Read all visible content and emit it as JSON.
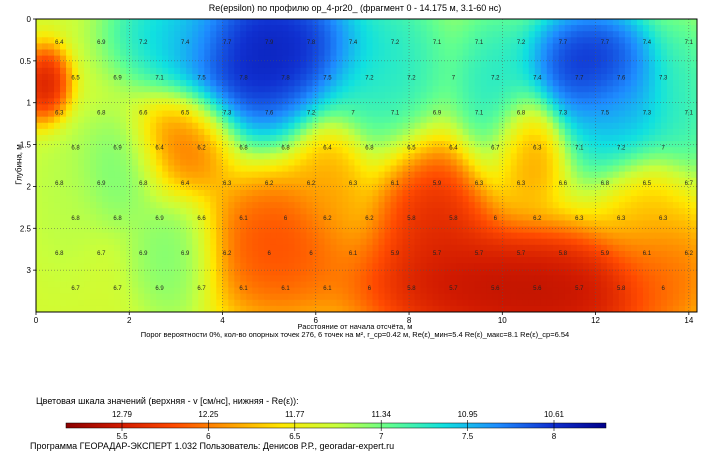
{
  "chart_data": {
    "type": "heatmap",
    "title": "Re(epsilon) по профилю op_4-pr20_ (фрагмент 0 - 14.175 м, 3.1-60 нс)",
    "xlabel": "Расстояние от начала отсчёта, м",
    "ylabel": "Глубина, м",
    "xlim": [
      0,
      14.175
    ],
    "ylim": [
      3.5,
      0
    ],
    "x_ticks": [
      "0",
      "2",
      "4",
      "6",
      "8",
      "10",
      "12",
      "14"
    ],
    "y_ticks": [
      "0",
      "0.5",
      "1",
      "1.5",
      "2",
      "2.5",
      "3"
    ],
    "grid": true,
    "value_range": [
      5.4,
      8.1
    ],
    "stats_line": "Порог вероятности 0%, кол-во опорных точек 276, 6 точек на м², r_ср=0.42 м,   Re(ε)_мин=5.4   Re(ε)_макс=8.1   Re(ε)_ср=6.54",
    "contour_labels": [
      "6.8",
      "6.3",
      "7.2",
      "7.5",
      "7.7",
      "6.4",
      "7.1",
      "7.3",
      "6.9",
      "7",
      "6.5",
      "6.6",
      "6.7",
      "6.2",
      "6.1",
      "6",
      "5.9",
      "5.8",
      "5.7",
      "5.6",
      "5.5",
      "6.4",
      "7.3",
      "7.6"
    ],
    "blobs": [
      {
        "x": 4.6,
        "y": 0.5,
        "v": 8.1,
        "sx": 1.3,
        "sy": 0.75
      },
      {
        "x": 5.4,
        "y": 0.3,
        "v": 8.0,
        "sx": 1.3,
        "sy": 0.5
      },
      {
        "x": 3.0,
        "y": 0.15,
        "v": 7.4,
        "sx": 1.1,
        "sy": 0.5
      },
      {
        "x": 11.9,
        "y": 0.55,
        "v": 8.1,
        "sx": 1.1,
        "sy": 0.55
      },
      {
        "x": 12.6,
        "y": 1.2,
        "v": 7.5,
        "sx": 1.0,
        "sy": 0.6
      },
      {
        "x": 9.8,
        "y": 0.9,
        "v": 7.3,
        "sx": 0.7,
        "sy": 0.8
      },
      {
        "x": 7.6,
        "y": 0.6,
        "v": 7.3,
        "sx": 1.0,
        "sy": 0.8
      },
      {
        "x": 13.9,
        "y": 1.0,
        "v": 7.2,
        "sx": 0.6,
        "sy": 0.8
      },
      {
        "x": 0.2,
        "y": 0.8,
        "v": 5.5,
        "sx": 0.4,
        "sy": 0.35
      },
      {
        "x": 0.6,
        "y": 2.1,
        "v": 6.8,
        "sx": 0.6,
        "sy": 0.7
      },
      {
        "x": 3.0,
        "y": 2.8,
        "v": 7.0,
        "sx": 0.7,
        "sy": 0.6
      },
      {
        "x": 1.8,
        "y": 1.8,
        "v": 7.0,
        "sx": 0.8,
        "sy": 0.5
      },
      {
        "x": 3.2,
        "y": 1.5,
        "v": 5.9,
        "sx": 0.8,
        "sy": 0.5
      },
      {
        "x": 5.1,
        "y": 2.7,
        "v": 5.8,
        "sx": 1.2,
        "sy": 0.7
      },
      {
        "x": 9.6,
        "y": 3.2,
        "v": 5.4,
        "sx": 2.2,
        "sy": 0.6
      },
      {
        "x": 8.6,
        "y": 2.3,
        "v": 5.6,
        "sx": 1.0,
        "sy": 0.7
      },
      {
        "x": 11.5,
        "y": 3.3,
        "v": 5.5,
        "sx": 1.5,
        "sy": 0.5
      },
      {
        "x": 13.5,
        "y": 3.0,
        "v": 6.0,
        "sx": 0.9,
        "sy": 0.6
      },
      {
        "x": 13.2,
        "y": 2.2,
        "v": 6.3,
        "sx": 0.8,
        "sy": 0.5
      },
      {
        "x": 6.3,
        "y": 1.9,
        "v": 6.2,
        "sx": 0.6,
        "sy": 0.5
      },
      {
        "x": 10.5,
        "y": 1.6,
        "v": 6.1,
        "sx": 0.6,
        "sy": 0.5
      }
    ],
    "base_value": 6.7
  },
  "color_scale": {
    "title": "Цветовая шкала значений (верхняя - v [см/нс], нижняя - Re(ε)):",
    "velocity_labels": [
      "12.79",
      "12.25",
      "11.77",
      "11.34",
      "10.95",
      "10.61"
    ],
    "eps_labels": [
      "5.5",
      "6",
      "6.5",
      "7",
      "7.5",
      "8"
    ],
    "eps_range": [
      5.4,
      8.1
    ],
    "colors": [
      "#8b0000",
      "#d11a00",
      "#ff4a00",
      "#ff9a00",
      "#ffe800",
      "#c8ff3c",
      "#60ff90",
      "#10e0e0",
      "#1e8cff",
      "#1030d0",
      "#00008b"
    ]
  },
  "footer": "Программа ГЕОРАДАР-ЭКСПЕРТ 1.032  Пользователь: Денисов Р.Р., georadar-expert.ru"
}
